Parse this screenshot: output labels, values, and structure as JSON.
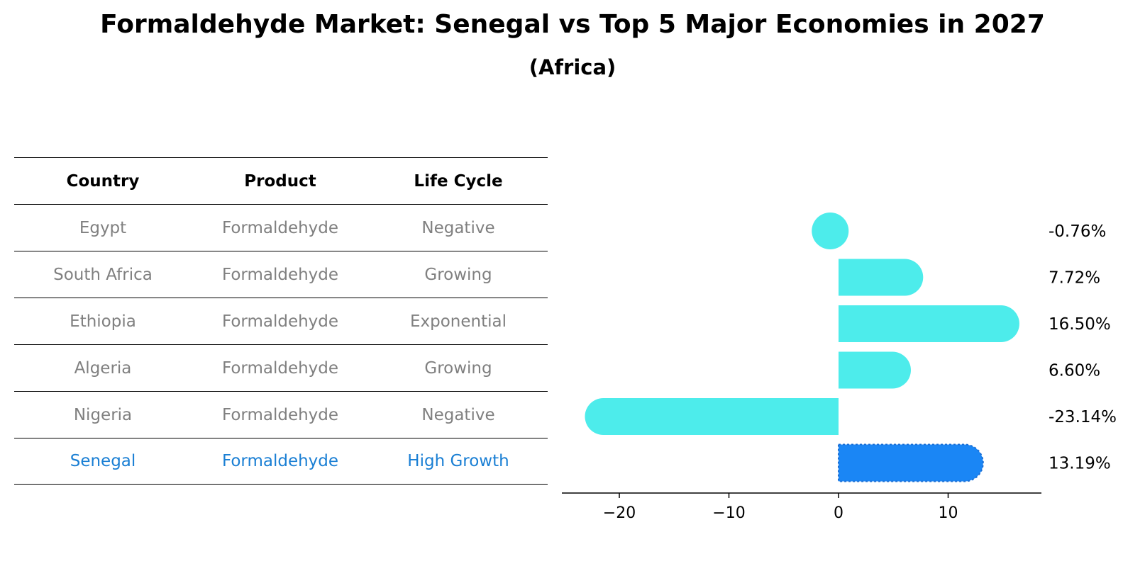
{
  "title": "Formaldehyde Market: Senegal vs Top 5 Major Economies in 2027",
  "subtitle": "(Africa)",
  "table": {
    "headers": [
      "Country",
      "Product",
      "Life Cycle"
    ],
    "rows": [
      {
        "country": "Egypt",
        "product": "Formaldehyde",
        "life_cycle": "Negative"
      },
      {
        "country": "South Africa",
        "product": "Formaldehyde",
        "life_cycle": "Growing"
      },
      {
        "country": "Ethiopia",
        "product": "Formaldehyde",
        "life_cycle": "Exponential"
      },
      {
        "country": "Algeria",
        "product": "Formaldehyde",
        "life_cycle": "Growing"
      },
      {
        "country": "Nigeria",
        "product": "Formaldehyde",
        "life_cycle": "Negative"
      },
      {
        "country": "Senegal",
        "product": "Formaldehyde",
        "life_cycle": "High Growth"
      }
    ]
  },
  "chart_data": {
    "type": "bar",
    "orientation": "horizontal",
    "categories": [
      "Egypt",
      "South Africa",
      "Ethiopia",
      "Algeria",
      "Nigeria",
      "Senegal"
    ],
    "values": [
      -0.76,
      7.72,
      16.5,
      6.6,
      -23.14,
      13.19
    ],
    "value_labels": [
      "-0.76%",
      "7.72%",
      "16.50%",
      "6.60%",
      "-23.14%",
      "13.19%"
    ],
    "highlight": "Senegal",
    "xlim": [
      -25,
      18.5
    ],
    "xticks": [
      -20,
      -10,
      0,
      10
    ],
    "xtick_labels": [
      "−20",
      "−10",
      "0",
      "10"
    ],
    "colors": {
      "default": "#4deceb",
      "highlight": "#1a86f5"
    }
  }
}
